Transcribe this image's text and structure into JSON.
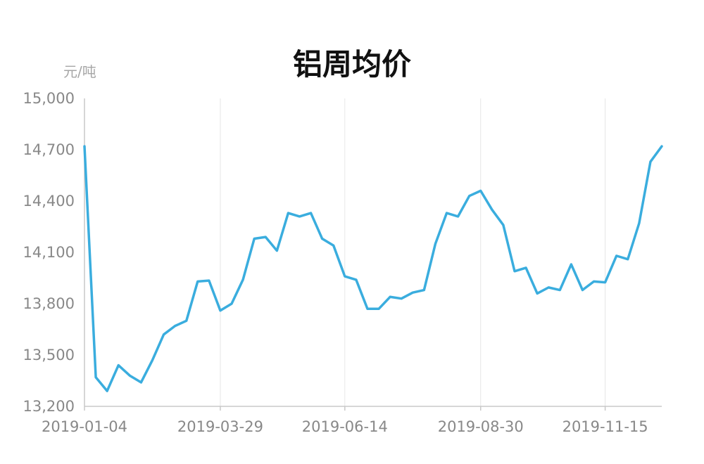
{
  "chart_data": {
    "type": "line",
    "title": "铝周均价",
    "ylabel": "元/吨",
    "xlabel": "",
    "ylim": [
      13200,
      15000
    ],
    "y_ticks": [
      "13,200",
      "13,500",
      "13,800",
      "14,100",
      "14,400",
      "14,700",
      "15,000"
    ],
    "y_tick_values": [
      13200,
      13500,
      13800,
      14100,
      14400,
      14700,
      15000
    ],
    "x_tick_labels": [
      "2019-01-04",
      "2019-03-29",
      "2019-06-14",
      "2019-08-30",
      "2019-11-15"
    ],
    "x_tick_indices": [
      0,
      12,
      23,
      35,
      46
    ],
    "grid": "vertical",
    "colors": {
      "line": "#3AADDE",
      "grid": "#e6e6e6",
      "axis": "#c8c8c8"
    },
    "series": [
      {
        "values": [
          14720,
          13370,
          13290,
          13440,
          13380,
          13340,
          13470,
          13620,
          13670,
          13700,
          13930,
          13935,
          13760,
          13800,
          13940,
          14180,
          14190,
          14110,
          14330,
          14310,
          14330,
          14180,
          14140,
          13960,
          13940,
          13770,
          13770,
          13840,
          13830,
          13865,
          13880,
          14150,
          14330,
          14310,
          14430,
          14460,
          14350,
          14260,
          13990,
          14010,
          13860,
          13895,
          13880,
          14030,
          13880,
          13930,
          13925,
          14080,
          14060,
          14270,
          14630,
          14720
        ]
      }
    ]
  }
}
